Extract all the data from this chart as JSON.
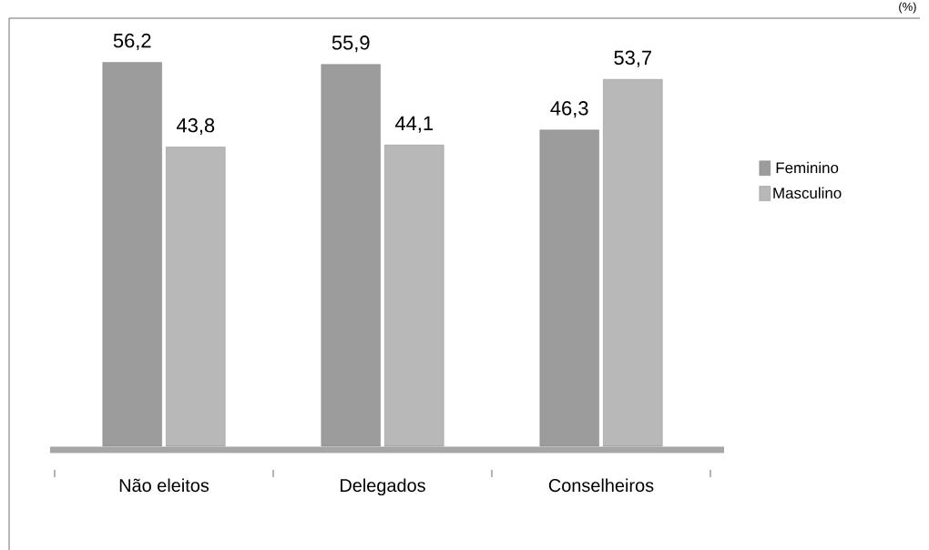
{
  "chart_data": {
    "type": "bar",
    "annotations": [
      "(%)"
    ],
    "categories": [
      "Não eleitos",
      "Delegados",
      "Conselheiros"
    ],
    "series": [
      {
        "name": "Feminino",
        "color": "#9c9c9c",
        "values": [
          56.2,
          55.9,
          46.3
        ],
        "value_labels": [
          "56,2",
          "55,9",
          "46,3"
        ]
      },
      {
        "name": "Masculino",
        "color": "#b8b8b8",
        "values": [
          43.8,
          44.1,
          53.7
        ],
        "value_labels": [
          "43,8",
          "44,1",
          "53,7"
        ]
      }
    ],
    "legend": "right"
  }
}
